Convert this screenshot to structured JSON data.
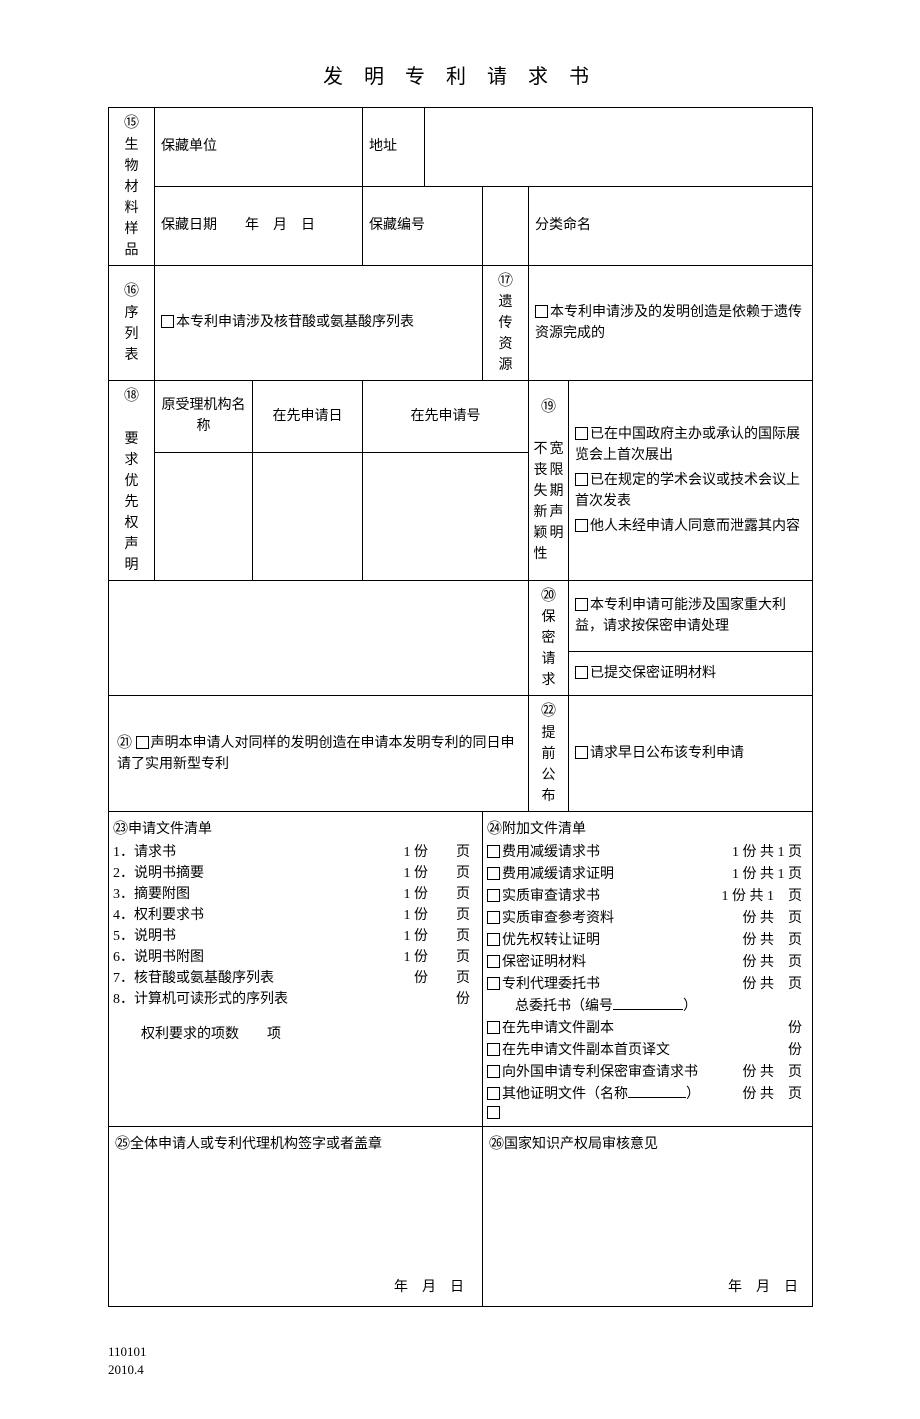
{
  "title": "发 明 专 利 请 求 书",
  "row15": {
    "num": "⑮",
    "side": "生物材料样品",
    "unit_label": "保藏单位",
    "addr_label": "地址",
    "date_label": "保藏日期",
    "date_ymd": "年　月　日",
    "code_label": "保藏编号",
    "class_label": "分类命名"
  },
  "row16": {
    "num": "⑯",
    "side": "序列表",
    "cb_text": "本专利申请涉及核苷酸或氨基酸序列表"
  },
  "row17": {
    "num": "⑰",
    "side": "遗传资源",
    "cb_text": "本专利申请涉及的发明创造是依赖于遗传资源完成的"
  },
  "row18": {
    "num": "⑱",
    "side": "要求优先权声明",
    "h1": "原受理机构名称",
    "h2": "在先申请日",
    "h3": "在先申请号"
  },
  "row19": {
    "num": "⑲",
    "side": "不丧失新颖性宽限期声明",
    "side_col1": "不丧失新颖性",
    "side_col2": "宽限期声明",
    "cb1": "已在中国政府主办或承认的国际展览会上首次展出",
    "cb2": "已在规定的学术会议或技术会议上首次发表",
    "cb3": "他人未经申请人同意而泄露其内容"
  },
  "row20": {
    "num": "⑳",
    "side": "保密请求",
    "cb1": "本专利申请可能涉及国家重大利益，请求按保密申请处理",
    "cb2": "已提交保密证明材料"
  },
  "row21": {
    "num": "㉑",
    "cb_text": "声明本申请人对同样的发明创造在申请本发明专利的同日申请了实用新型专利"
  },
  "row22": {
    "num": "㉒",
    "side": "提前公布",
    "cb_text": "请求早日公布该专利申请"
  },
  "row23": {
    "num": "㉓",
    "title": "申请文件清单",
    "items": [
      {
        "n": "1．",
        "name": "请求书",
        "copies": "1 份",
        "pages": "页"
      },
      {
        "n": "2．",
        "name": "说明书摘要",
        "copies": "1 份",
        "pages": "页"
      },
      {
        "n": "3．",
        "name": "摘要附图",
        "copies": "1 份",
        "pages": "页"
      },
      {
        "n": "4．",
        "name": "权利要求书",
        "copies": "1 份",
        "pages": "页"
      },
      {
        "n": "5．",
        "name": "说明书",
        "copies": "1 份",
        "pages": "页"
      },
      {
        "n": "6．",
        "name": "说明书附图",
        "copies": "1 份",
        "pages": "页"
      },
      {
        "n": "7．",
        "name": "核苷酸或氨基酸序列表",
        "copies": "份",
        "pages": "页"
      },
      {
        "n": "8．",
        "name": "计算机可读形式的序列表",
        "copies": "",
        "pages": "份"
      }
    ],
    "claims": "权利要求的项数",
    "claims_unit": "项"
  },
  "row24": {
    "num": "㉔",
    "title": "附加文件清单",
    "items": [
      {
        "name": "费用减缓请求书",
        "cnt": "1 份 共 1 页"
      },
      {
        "name": "费用减缓请求证明",
        "cnt": "1 份 共 1 页"
      },
      {
        "name": "实质审查请求书",
        "cnt": "1 份 共 1　页"
      },
      {
        "name": "实质审查参考资料",
        "cnt": "份 共　页"
      },
      {
        "name": "优先权转让证明",
        "cnt": "份 共　页"
      },
      {
        "name": "保密证明材料",
        "cnt": "份 共　页"
      },
      {
        "name": "专利代理委托书",
        "cnt": "份 共　页"
      }
    ],
    "general": "总委托书（编号",
    "general_end": "）",
    "more": [
      {
        "name": "在先申请文件副本",
        "cnt": "份"
      },
      {
        "name": "在先申请文件副本首页译文",
        "cnt": "份"
      },
      {
        "name": "向外国申请专利保密审查请求书",
        "cnt": "份 共　页"
      }
    ],
    "other": "其他证明文件（名称",
    "other_end": "）",
    "other_cnt": "份 共　页"
  },
  "row25": {
    "num": "㉕",
    "title": "全体申请人或专利代理机构签字或者盖章",
    "date": "年　月　日"
  },
  "row26": {
    "num": "㉖",
    "title": "国家知识产权局审核意见",
    "date": "年　月　日"
  },
  "footer": {
    "code": "110101",
    "date": "2010.4"
  }
}
